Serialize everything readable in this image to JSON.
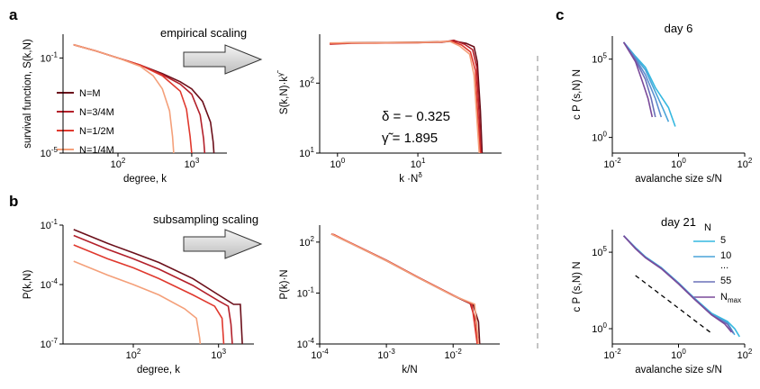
{
  "panel_labels": [
    "a",
    "b",
    "c"
  ],
  "arrows": {
    "top": "empirical scaling",
    "bottom": "subsampling scaling"
  },
  "legend_left": [
    "N=M",
    "N=3/4M",
    "N=1/2M",
    "N=1/4M"
  ],
  "legend_day21": {
    "title": "N",
    "items": [
      "5",
      "10",
      "...",
      "55",
      "N_max"
    ]
  },
  "equation": {
    "delta": "δ = − 0.325",
    "gamma": "γ̃ = 1.895"
  },
  "colors": {
    "N=M": "#6b0f1a",
    "N=3/4M": "#b3202a",
    "N=1/2M": "#e0392e",
    "N=1/4M": "#f4a07a",
    "day_light": "#35b8e0",
    "day_dark": "#7a4a9a"
  },
  "chart_data": [
    {
      "id": "a-left",
      "type": "line",
      "log_x": true,
      "log_y": true,
      "xlabel": "degree, k",
      "ylabel": "survival function, S(k,N)",
      "xlim": [
        18,
        3000
      ],
      "ylim": [
        1e-05,
        1
      ],
      "xticks": [
        {
          "v": 100,
          "label": "10^2"
        },
        {
          "v": 1000,
          "label": "10^3"
        }
      ],
      "yticks": [
        {
          "v": 0.1,
          "label": "10^-1"
        },
        {
          "v": 1e-05,
          "label": "10^-5"
        }
      ],
      "series": [
        {
          "name": "N=M",
          "color": "#6b0f1a",
          "x": [
            25,
            50,
            100,
            200,
            400,
            700,
            1000,
            1400,
            1800,
            1950,
            2000
          ],
          "y": [
            0.36,
            0.2,
            0.1,
            0.05,
            0.022,
            0.01,
            0.005,
            0.0015,
            0.0002,
            3e-05,
            1e-05
          ]
        },
        {
          "name": "N=3/4M",
          "color": "#b3202a",
          "x": [
            25,
            50,
            100,
            200,
            400,
            700,
            1000,
            1300,
            1450,
            1500
          ],
          "y": [
            0.36,
            0.2,
            0.1,
            0.05,
            0.02,
            0.008,
            0.003,
            0.0004,
            4e-05,
            1e-05
          ]
        },
        {
          "name": "N=1/2M",
          "color": "#e0392e",
          "x": [
            25,
            50,
            100,
            200,
            400,
            700,
            850,
            950,
            1000
          ],
          "y": [
            0.36,
            0.2,
            0.1,
            0.05,
            0.018,
            0.004,
            0.0007,
            5e-05,
            1e-05
          ]
        },
        {
          "name": "N=1/4M",
          "color": "#f4a07a",
          "x": [
            25,
            50,
            100,
            200,
            300,
            400,
            500,
            550,
            570
          ],
          "y": [
            0.36,
            0.2,
            0.1,
            0.045,
            0.018,
            0.005,
            0.0006,
            5e-05,
            1e-05
          ]
        }
      ]
    },
    {
      "id": "a-right",
      "type": "line",
      "log_x": true,
      "log_y": true,
      "xlabel": "k ·N^δ",
      "ylabel": "S(k,N)·k^γ̃",
      "xlim": [
        0.6,
        110
      ],
      "ylim": [
        10,
        500
      ],
      "xticks": [
        {
          "v": 1,
          "label": "10^0"
        },
        {
          "v": 10,
          "label": "10^1"
        }
      ],
      "yticks": [
        {
          "v": 10,
          "label": "10^1"
        },
        {
          "v": 100,
          "label": "10^2"
        }
      ],
      "series": [
        {
          "name": "N=M",
          "color": "#6b0f1a",
          "x": [
            0.8,
            1.5,
            3,
            6,
            10,
            20,
            30,
            40,
            50,
            55,
            60,
            63
          ],
          "y": [
            370,
            380,
            380,
            382,
            385,
            390,
            395,
            370,
            330,
            200,
            40,
            10
          ]
        },
        {
          "name": "N=3/4M",
          "color": "#b3202a",
          "x": [
            0.8,
            1.5,
            3,
            6,
            10,
            20,
            28,
            38,
            48,
            54,
            58,
            61
          ],
          "y": [
            360,
            372,
            375,
            378,
            380,
            383,
            410,
            360,
            300,
            170,
            35,
            10
          ]
        },
        {
          "name": "N=1/2M",
          "color": "#e0392e",
          "x": [
            0.8,
            1.5,
            3,
            6,
            10,
            18,
            26,
            35,
            45,
            52,
            56,
            60
          ],
          "y": [
            365,
            375,
            372,
            380,
            378,
            390,
            400,
            350,
            280,
            150,
            30,
            10
          ]
        },
        {
          "name": "N=1/4M",
          "color": "#f4a07a",
          "x": [
            0.8,
            1.5,
            3,
            6,
            10,
            18,
            25,
            33,
            44,
            50,
            55,
            58
          ],
          "y": [
            375,
            378,
            376,
            382,
            382,
            388,
            395,
            340,
            260,
            130,
            25,
            10
          ]
        }
      ]
    },
    {
      "id": "b-left",
      "type": "line",
      "log_x": true,
      "log_y": true,
      "xlabel": "degree, k",
      "ylabel": "P(k,N)",
      "xlim": [
        15,
        2600
      ],
      "ylim": [
        1e-07,
        0.1
      ],
      "xticks": [
        {
          "v": 100,
          "label": "10^2"
        },
        {
          "v": 1000,
          "label": "10^3"
        }
      ],
      "yticks": [
        {
          "v": 0.1,
          "label": "10^-1"
        },
        {
          "v": 0.0001,
          "label": "10^-4"
        },
        {
          "v": 1e-07,
          "label": "10^-7"
        }
      ],
      "series": [
        {
          "name": "N=M",
          "color": "#6b0f1a",
          "x": [
            20,
            50,
            100,
            200,
            500,
            1000,
            1500,
            1800,
            1850,
            1900
          ],
          "y": [
            0.06,
            0.012,
            0.004,
            0.0013,
            0.0002,
            3e-05,
            1e-05,
            1e-05,
            1e-06,
            1e-07
          ]
        },
        {
          "name": "N=3/4M",
          "color": "#b3202a",
          "x": [
            20,
            50,
            100,
            200,
            500,
            1000,
            1300,
            1400,
            1450
          ],
          "y": [
            0.03,
            0.006,
            0.002,
            0.0006,
            9e-05,
            1.5e-05,
            8e-06,
            1e-06,
            1e-07
          ]
        },
        {
          "name": "N=1/2M",
          "color": "#e0392e",
          "x": [
            20,
            50,
            100,
            200,
            500,
            900,
            1100,
            1150
          ],
          "y": [
            0.01,
            0.002,
            0.0007,
            0.0002,
            3e-05,
            8e-06,
            2e-06,
            1e-07
          ]
        },
        {
          "name": "N=1/4M",
          "color": "#f4a07a",
          "x": [
            20,
            50,
            100,
            200,
            400,
            550,
            600,
            610
          ],
          "y": [
            0.0015,
            0.0003,
            0.0001,
            3e-05,
            6e-06,
            2e-06,
            2e-07,
            1e-07
          ]
        }
      ]
    },
    {
      "id": "b-right",
      "type": "line",
      "log_x": true,
      "log_y": true,
      "xlabel": "k/N",
      "ylabel": "P(k)·N",
      "xlim": [
        0.0001,
        0.05
      ],
      "ylim": [
        0.0001,
        1000
      ],
      "xticks": [
        {
          "v": 0.0001,
          "label": "10^-4"
        },
        {
          "v": 0.001,
          "label": "10^-3"
        },
        {
          "v": 0.01,
          "label": "10^-2"
        }
      ],
      "yticks": [
        {
          "v": 100,
          "label": "10^2"
        },
        {
          "v": 0.1,
          "label": "10^-1"
        },
        {
          "v": 0.0001,
          "label": "10^-4"
        }
      ],
      "series": [
        {
          "name": "N=M",
          "color": "#6b0f1a",
          "x": [
            0.00015,
            0.0003,
            0.001,
            0.003,
            0.01,
            0.02,
            0.024,
            0.025
          ],
          "y": [
            300,
            80,
            8,
            0.8,
            0.07,
            0.02,
            0.002,
            0.0001
          ]
        },
        {
          "name": "N=3/4M",
          "color": "#b3202a",
          "x": [
            0.00015,
            0.0003,
            0.001,
            0.003,
            0.01,
            0.018,
            0.022,
            0.023
          ],
          "y": [
            310,
            85,
            8.5,
            0.85,
            0.075,
            0.025,
            0.002,
            0.0001
          ]
        },
        {
          "name": "N=1/2M",
          "color": "#e0392e",
          "x": [
            0.00016,
            0.0003,
            0.001,
            0.003,
            0.01,
            0.019,
            0.023
          ],
          "y": [
            290,
            82,
            8,
            0.82,
            0.072,
            0.024,
            0.0001
          ]
        },
        {
          "name": "N=1/4M",
          "color": "#f4a07a",
          "x": [
            0.00015,
            0.0003,
            0.001,
            0.003,
            0.01,
            0.021,
            0.024
          ],
          "y": [
            300,
            80,
            8,
            0.8,
            0.07,
            0.022,
            0.0001
          ]
        }
      ]
    },
    {
      "id": "c-top",
      "type": "line",
      "log_x": true,
      "log_y": true,
      "title": "day 6",
      "xlabel": "avalanche size s/N",
      "ylabel": "c P (s,N) N",
      "xlim": [
        0.01,
        100
      ],
      "ylim": [
        0.1,
        3000000
      ],
      "xticks": [
        {
          "v": 0.01,
          "label": "10^-2"
        },
        {
          "v": 1,
          "label": "10^0"
        },
        {
          "v": 100,
          "label": "10^2"
        }
      ],
      "yticks": [
        {
          "v": 100000,
          "label": "10^5"
        },
        {
          "v": 1,
          "label": "10^0"
        }
      ],
      "series": [
        {
          "name": "5",
          "color": "#35b8e0",
          "x": [
            0.022,
            0.05,
            0.1,
            0.2,
            0.5,
            0.8
          ],
          "y": [
            1200000,
            150000,
            30000,
            1500,
            80,
            5
          ]
        },
        {
          "name": "",
          "color": "#4aa4d8",
          "x": [
            0.022,
            0.05,
            0.1,
            0.2,
            0.35,
            0.5
          ],
          "y": [
            1200000,
            130000,
            20000,
            800,
            60,
            10
          ]
        },
        {
          "name": "",
          "color": "#5c8ecf",
          "x": [
            0.022,
            0.05,
            0.1,
            0.2,
            0.3
          ],
          "y": [
            1200000,
            110000,
            10000,
            300,
            20
          ]
        },
        {
          "name": "",
          "color": "#6a70b8",
          "x": [
            0.022,
            0.05,
            0.1,
            0.15,
            0.2
          ],
          "y": [
            1200000,
            90000,
            5000,
            300,
            20
          ]
        },
        {
          "name": "N_max",
          "color": "#7a4a9a",
          "x": [
            0.022,
            0.05,
            0.08,
            0.12,
            0.16
          ],
          "y": [
            1200000,
            70000,
            4000,
            300,
            20
          ]
        }
      ]
    },
    {
      "id": "c-bottom",
      "type": "line",
      "log_x": true,
      "log_y": true,
      "title": "day 21",
      "xlabel": "avalanche size s/N",
      "ylabel": "c P (s,N) N",
      "xlim": [
        0.01,
        100
      ],
      "ylim": [
        0.1,
        3000000
      ],
      "xticks": [
        {
          "v": 0.01,
          "label": "10^-2"
        },
        {
          "v": 1,
          "label": "10^0"
        },
        {
          "v": 100,
          "label": "10^2"
        }
      ],
      "yticks": [
        {
          "v": 100000,
          "label": "10^5"
        },
        {
          "v": 1,
          "label": "10^0"
        }
      ],
      "series": [
        {
          "name": "5",
          "color": "#35b8e0",
          "x": [
            0.022,
            0.05,
            0.1,
            0.3,
            1,
            3,
            10,
            30,
            50,
            70
          ],
          "y": [
            1200000,
            200000,
            50000,
            10000,
            1000,
            100,
            10,
            3,
            1,
            0.3
          ]
        },
        {
          "name": "10",
          "color": "#4aa4d8",
          "x": [
            0.022,
            0.05,
            0.1,
            0.3,
            1,
            3,
            10,
            30,
            50
          ],
          "y": [
            1200000,
            190000,
            48000,
            9500,
            950,
            95,
            9,
            2.5,
            0.4
          ]
        },
        {
          "name": "55",
          "color": "#6a70b8",
          "x": [
            0.022,
            0.05,
            0.1,
            0.3,
            1,
            3,
            10,
            30,
            45
          ],
          "y": [
            1200000,
            180000,
            45000,
            9000,
            900,
            90,
            8,
            2,
            0.5
          ]
        },
        {
          "name": "N_max",
          "color": "#7a4a9a",
          "x": [
            0.022,
            0.05,
            0.1,
            0.3,
            1,
            3,
            10,
            25,
            40
          ],
          "y": [
            1200000,
            170000,
            43000,
            8500,
            850,
            85,
            8,
            2,
            0.6
          ]
        }
      ],
      "reference_line": {
        "x": [
          0.05,
          10
        ],
        "y": [
          3000,
          0.5
        ]
      }
    }
  ]
}
